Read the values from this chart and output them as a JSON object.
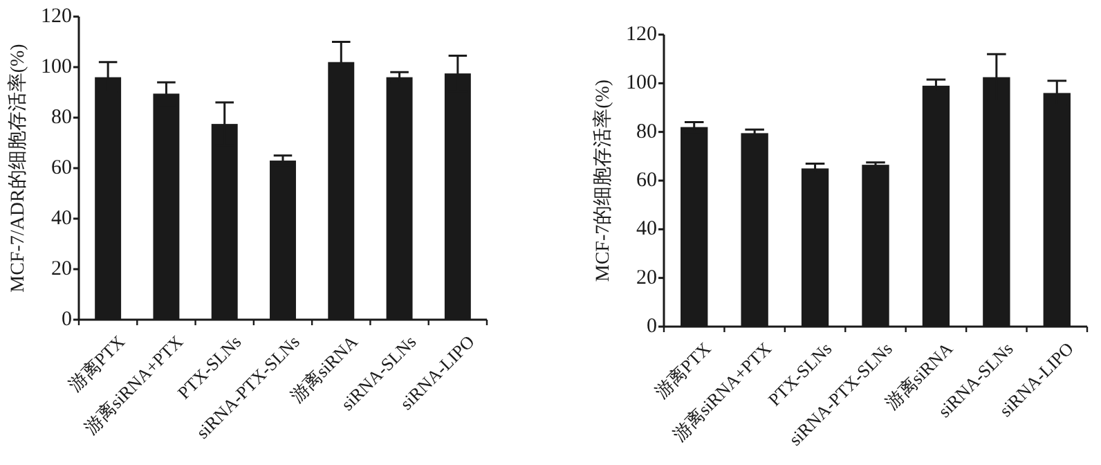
{
  "chart_data": [
    {
      "type": "bar",
      "ylabel": "MCF-7/ADR的细胞存活率(%)",
      "categories": [
        "游离PTX",
        "游离siRNA+PTX",
        "PTX-SLNs",
        "siRNA-PTX-SLNs",
        "游离siRNA",
        "siRNA-SLNs",
        "siRNA-LIPO"
      ],
      "series": [
        {
          "color": "#1a1a1a",
          "values": [
            96,
            89.5,
            77.5,
            63,
            102,
            96,
            97.5
          ],
          "errors": [
            6,
            4.5,
            8.5,
            2,
            8,
            2,
            7
          ]
        }
      ],
      "ylim": [
        0,
        120
      ],
      "yticks": [
        0,
        20,
        40,
        60,
        80,
        100,
        120
      ],
      "grid": false
    },
    {
      "type": "bar",
      "ylabel": "MCF-7的细胞存活率(%)",
      "categories": [
        "游离PTX",
        "游离siRNA+PTX",
        "PTX-SLNs",
        "siRNA-PTX-SLNs",
        "游离siRNA",
        "siRNA-SLNs",
        "siRNA-LIPO"
      ],
      "series": [
        {
          "color": "#1a1a1a",
          "values": [
            82,
            79.5,
            65,
            66.5,
            99,
            102.5,
            96
          ],
          "errors": [
            2,
            1.5,
            2,
            1,
            2.5,
            9.5,
            5
          ]
        }
      ],
      "ylim": [
        0,
        120
      ],
      "yticks": [
        0,
        20,
        40,
        60,
        80,
        100,
        120
      ],
      "grid": false
    }
  ]
}
